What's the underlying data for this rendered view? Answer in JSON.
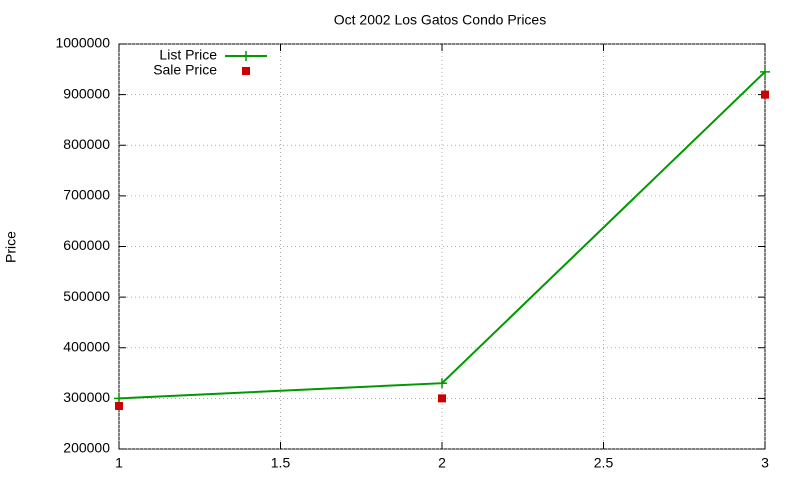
{
  "chart_data": {
    "type": "line",
    "title": "Oct 2002 Los Gatos Condo Prices",
    "y_label": "Price",
    "x": [
      1,
      2,
      3
    ],
    "series": [
      {
        "name": "List Price",
        "color": "#009900",
        "mode": "lines+markers",
        "values": [
          300000,
          330000,
          945000
        ]
      },
      {
        "name": "Sale Price",
        "color": "#cc0000",
        "mode": "markers",
        "values": [
          285000,
          300000,
          900000
        ]
      }
    ],
    "xlim": [
      1,
      3
    ],
    "xticks": [
      1,
      1.5,
      2,
      2.5,
      3
    ],
    "ylim": [
      200000,
      1000000
    ],
    "yticks": [
      200000,
      300000,
      400000,
      500000,
      600000,
      700000,
      800000,
      900000,
      1000000
    ],
    "grid": true,
    "legend": "top-left"
  }
}
